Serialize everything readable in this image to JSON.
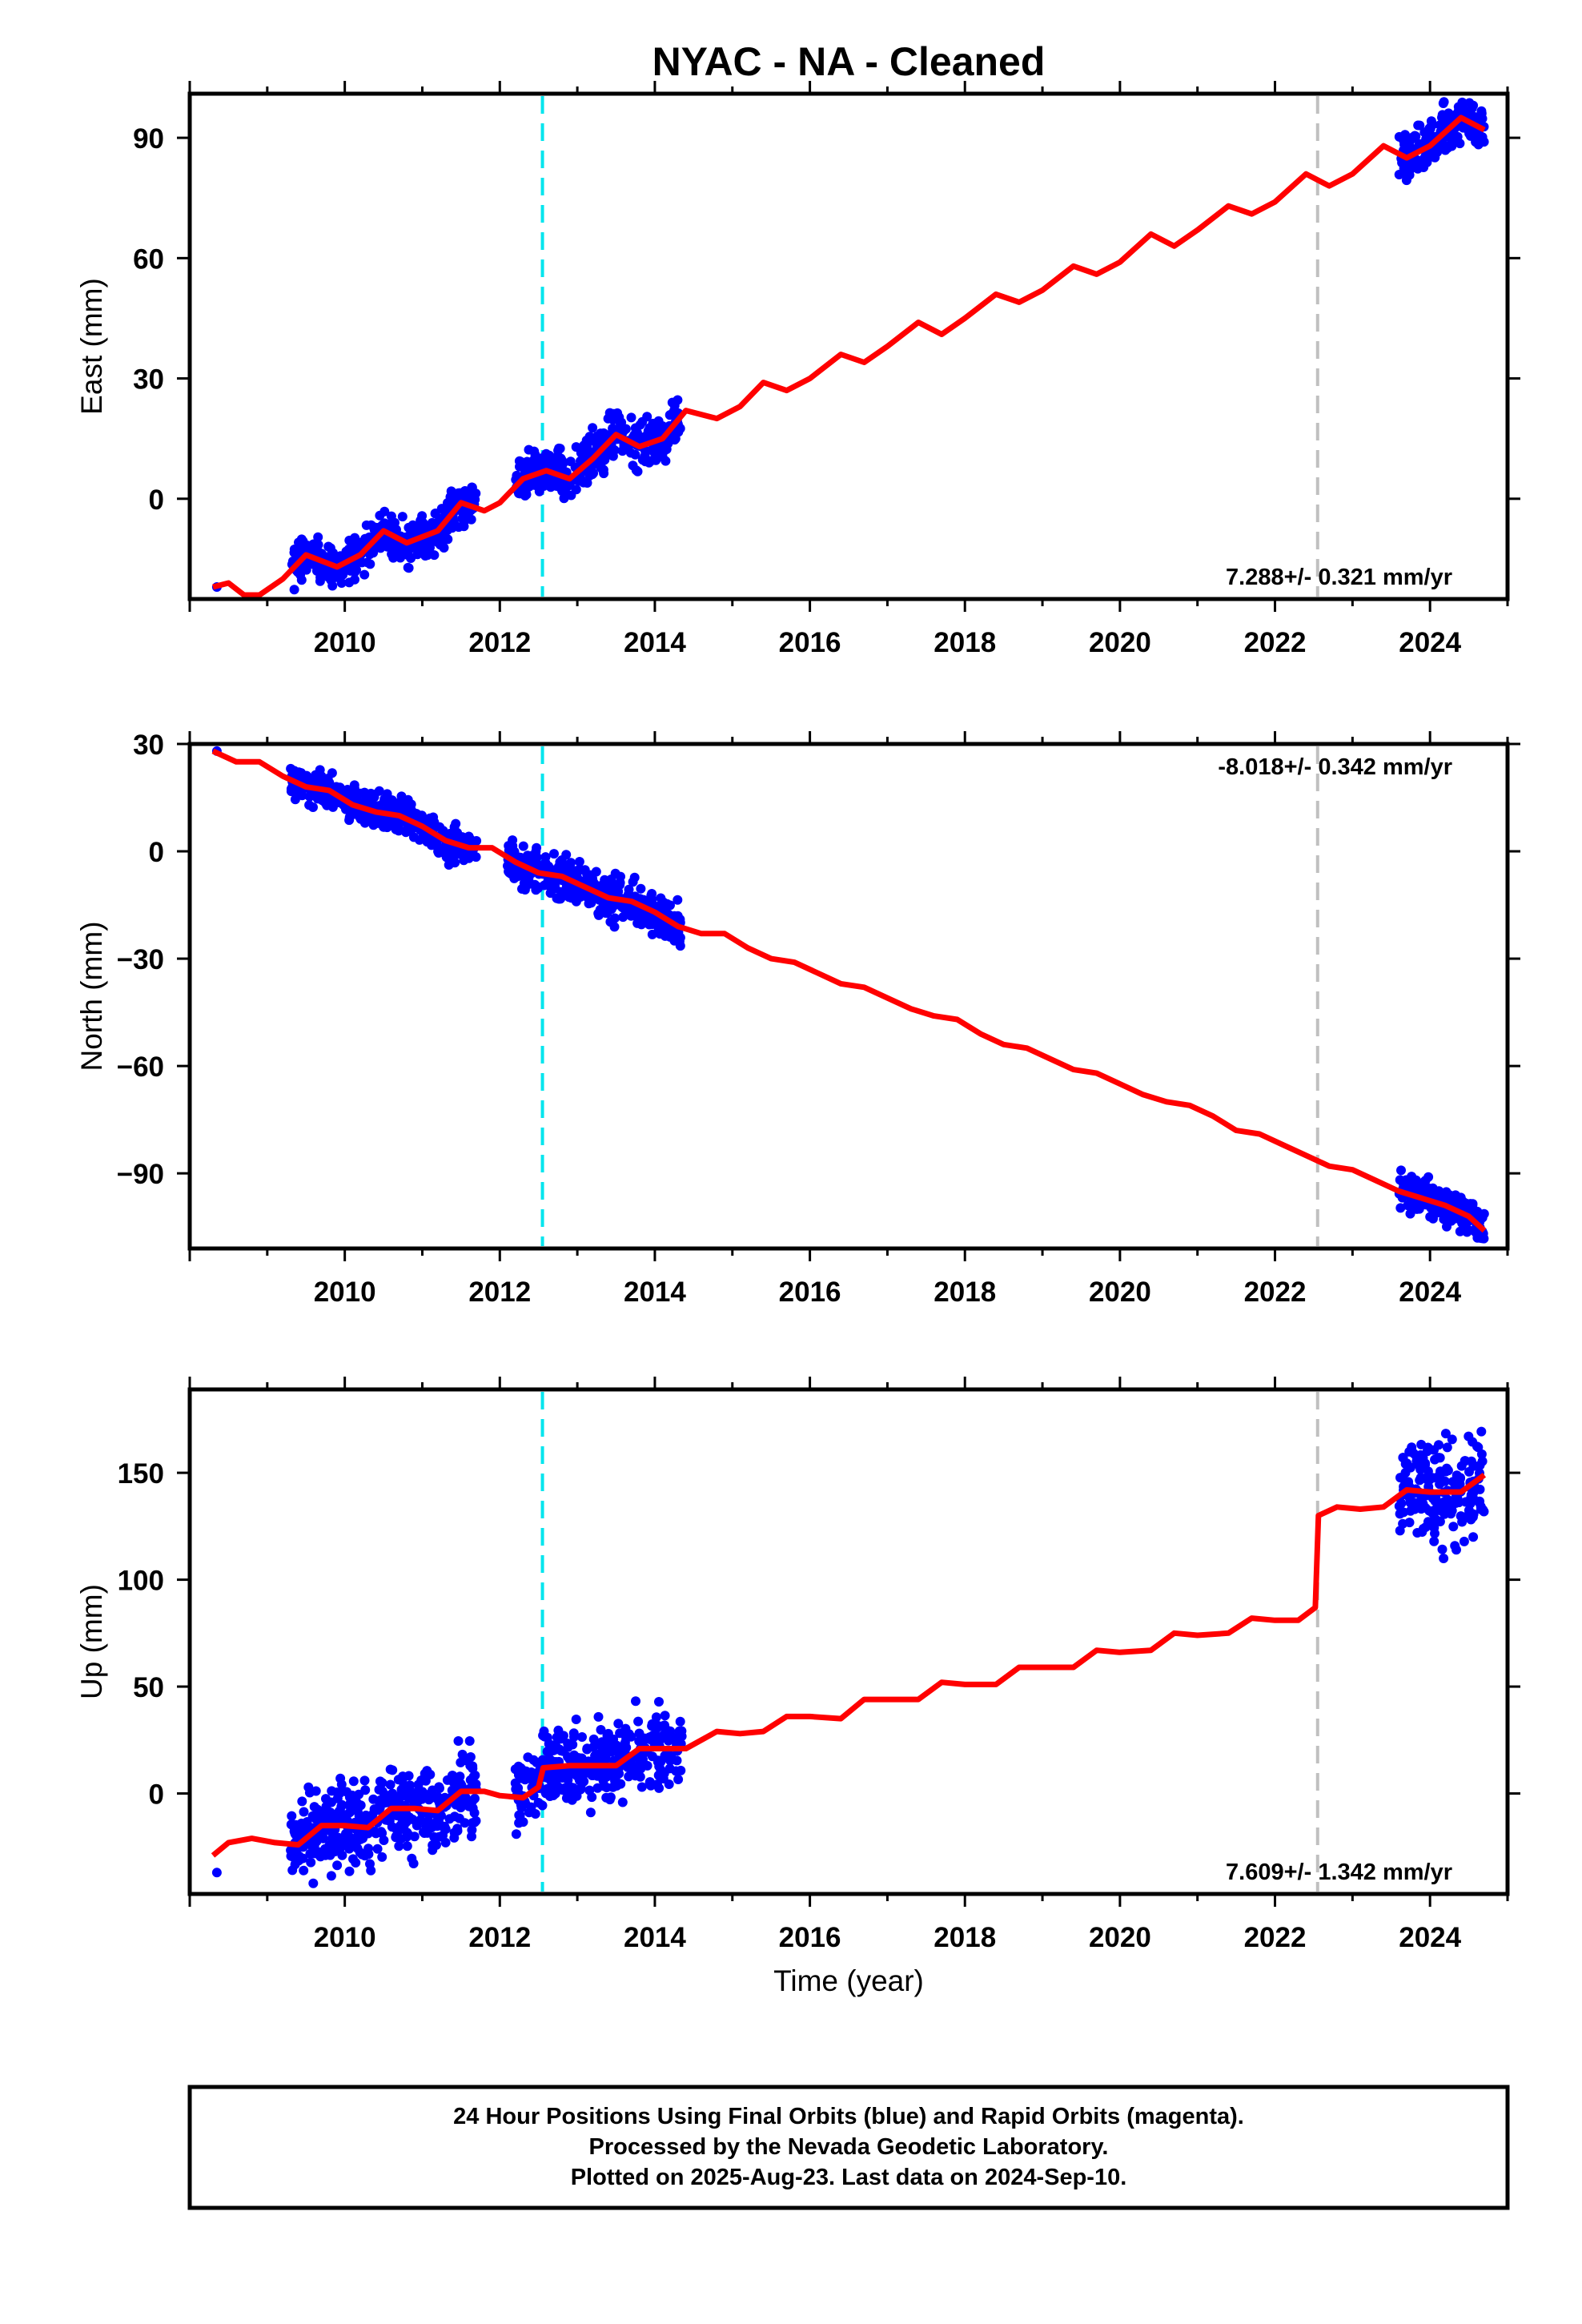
{
  "title": "NYAC  - NA - Cleaned",
  "xlabel": "Time (year)",
  "colors": {
    "data": "#0000ff",
    "model": "#ff0000",
    "event_cyan": "#00e5ee",
    "event_gray": "#c0c0c0",
    "frame": "#000000"
  },
  "footer": {
    "line1": "24 Hour Positions Using Final Orbits (blue) and Rapid Orbits (magenta).",
    "line2": "Processed by the Nevada Geodetic Laboratory.",
    "line3": "Plotted on 2025-Aug-23. Last data on 2024-Sep-10."
  },
  "chart_data": [
    {
      "type": "scatter",
      "component": "east",
      "ylabel": "East (mm)",
      "rate_label": "7.288+/- 0.321 mm/yr",
      "xlim": [
        2008.0,
        2025.0
      ],
      "ylim": [
        -25,
        101
      ],
      "xticks": [
        "2010",
        "2012",
        "2014",
        "2016",
        "2018",
        "2020",
        "2022",
        "2024"
      ],
      "yticks": [
        "0",
        "30",
        "60",
        "90"
      ],
      "event_lines": [
        2012.55,
        2022.55
      ],
      "model": {
        "x": [
          2008.3,
          2008.5,
          2008.7,
          2008.9,
          2009.2,
          2009.5,
          2009.9,
          2010.2,
          2010.5,
          2010.8,
          2011.2,
          2011.5,
          2011.8,
          2012.0,
          2012.3,
          2012.6,
          2012.9,
          2013.2,
          2013.5,
          2013.8,
          2014.1,
          2014.4,
          2014.8,
          2015.1,
          2015.4,
          2015.7,
          2016.0,
          2016.4,
          2016.7,
          2017.0,
          2017.4,
          2017.7,
          2018.0,
          2018.4,
          2018.7,
          2019.0,
          2019.4,
          2019.7,
          2020.0,
          2020.4,
          2020.7,
          2021.0,
          2021.4,
          2021.7,
          2022.0,
          2022.4,
          2022.7,
          2023.0,
          2023.4,
          2023.7,
          2024.0,
          2024.4,
          2024.7
        ],
        "y": [
          -22,
          -21,
          -24,
          -24,
          -20,
          -14,
          -17,
          -14,
          -8,
          -11,
          -8,
          -1,
          -3,
          -1,
          5,
          7,
          5,
          10,
          16,
          13,
          15,
          22,
          20,
          23,
          29,
          27,
          30,
          36,
          34,
          38,
          44,
          41,
          45,
          51,
          49,
          52,
          58,
          56,
          59,
          66,
          63,
          67,
          73,
          71,
          74,
          81,
          78,
          81,
          88,
          85,
          88,
          95,
          92
        ]
      },
      "data_ranges": [
        [
          2009.3,
          2009.8,
          2.5
        ],
        [
          2009.8,
          2011.7,
          2.5
        ],
        [
          2012.2,
          2014.35,
          3
        ],
        [
          2023.6,
          2024.7,
          3
        ]
      ]
    },
    {
      "type": "scatter",
      "component": "north",
      "ylabel": "North (mm)",
      "rate_label": "-8.018+/- 0.342 mm/yr",
      "xlim": [
        2008.0,
        2025.0
      ],
      "ylim": [
        -111,
        30
      ],
      "xticks": [
        "2010",
        "2012",
        "2014",
        "2016",
        "2018",
        "2020",
        "2022",
        "2024"
      ],
      "yticks": [
        "30",
        "0",
        "-30",
        "-60",
        "-90"
      ],
      "event_lines": [
        2012.55,
        2022.55
      ],
      "model": {
        "x": [
          2008.3,
          2008.6,
          2008.9,
          2009.2,
          2009.5,
          2009.8,
          2010.1,
          2010.4,
          2010.7,
          2011.0,
          2011.3,
          2011.6,
          2011.9,
          2012.2,
          2012.5,
          2012.8,
          2013.1,
          2013.4,
          2013.7,
          2014.0,
          2014.3,
          2014.6,
          2014.9,
          2015.2,
          2015.5,
          2015.8,
          2016.1,
          2016.4,
          2016.7,
          2017.0,
          2017.3,
          2017.6,
          2017.9,
          2018.2,
          2018.5,
          2018.8,
          2019.1,
          2019.4,
          2019.7,
          2020.0,
          2020.3,
          2020.6,
          2020.9,
          2021.2,
          2021.5,
          2021.8,
          2022.1,
          2022.4,
          2022.7,
          2023.0,
          2023.3,
          2023.6,
          2023.9,
          2024.2,
          2024.5,
          2024.7
        ],
        "y": [
          28,
          25,
          25,
          21,
          18,
          17,
          13,
          11,
          10,
          7,
          3,
          1,
          1,
          -3,
          -6,
          -7,
          -10,
          -13,
          -14,
          -17,
          -21,
          -23,
          -23,
          -27,
          -30,
          -31,
          -34,
          -37,
          -38,
          -41,
          -44,
          -46,
          -47,
          -51,
          -54,
          -55,
          -58,
          -61,
          -62,
          -65,
          -68,
          -70,
          -71,
          -74,
          -78,
          -79,
          -82,
          -85,
          -88,
          -89,
          -92,
          -95,
          -97,
          -99,
          -102,
          -106
        ]
      },
      "data_ranges": [
        [
          2009.3,
          2011.7,
          2.5
        ],
        [
          2012.1,
          2014.35,
          3
        ],
        [
          2023.6,
          2024.7,
          2.5
        ]
      ]
    },
    {
      "type": "scatter",
      "component": "up",
      "ylabel": "Up (mm)",
      "rate_label": "7.609+/- 1.342 mm/yr",
      "xlim": [
        2008.0,
        2025.0
      ],
      "ylim": [
        -47,
        189
      ],
      "xticks": [
        "2010",
        "2012",
        "2014",
        "2016",
        "2018",
        "2020",
        "2022",
        "2024"
      ],
      "yticks": [
        "0",
        "50",
        "100",
        "150"
      ],
      "event_lines": [
        2012.55,
        2022.55
      ],
      "model": {
        "x": [
          2008.3,
          2008.5,
          2008.8,
          2009.1,
          2009.4,
          2009.7,
          2010.0,
          2010.3,
          2010.6,
          2010.9,
          2011.2,
          2011.5,
          2011.8,
          2012.0,
          2012.3,
          2012.5,
          2012.56,
          2012.9,
          2013.2,
          2013.5,
          2013.8,
          2014.1,
          2014.4,
          2014.8,
          2015.1,
          2015.4,
          2015.7,
          2016.0,
          2016.4,
          2016.7,
          2017.0,
          2017.4,
          2017.7,
          2018.0,
          2018.4,
          2018.7,
          2019.0,
          2019.4,
          2019.7,
          2020.0,
          2020.4,
          2020.7,
          2021.0,
          2021.4,
          2021.7,
          2022.0,
          2022.3,
          2022.52,
          2022.56,
          2022.8,
          2023.1,
          2023.4,
          2023.7,
          2024.0,
          2024.4,
          2024.7
        ],
        "y": [
          -29,
          -23,
          -21,
          -23,
          -24,
          -15,
          -15,
          -16,
          -7,
          -7,
          -8,
          1,
          1,
          -1,
          -2,
          3,
          12,
          13,
          13,
          13,
          21,
          21,
          21,
          29,
          28,
          29,
          36,
          36,
          35,
          44,
          44,
          44,
          52,
          51,
          51,
          59,
          59,
          59,
          67,
          66,
          67,
          75,
          74,
          75,
          82,
          81,
          81,
          87,
          130,
          134,
          133,
          134,
          142,
          141,
          141,
          149
        ]
      },
      "data_ranges": [
        [
          2009.3,
          2011.7,
          10
        ],
        [
          2012.2,
          2014.35,
          9
        ],
        [
          2023.6,
          2024.7,
          12
        ]
      ]
    }
  ]
}
